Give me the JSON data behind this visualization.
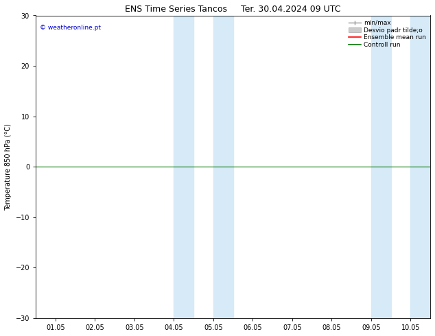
{
  "title": "ENS Time Series Tancos",
  "title2": "Ter. 30.04.2024 09 UTC",
  "ylabel": "Temperature 850 hPa (°C)",
  "ylim": [
    -30,
    30
  ],
  "yticks": [
    -30,
    -20,
    -10,
    0,
    10,
    20,
    30
  ],
  "xtick_labels": [
    "01.05",
    "02.05",
    "03.05",
    "04.05",
    "05.05",
    "06.05",
    "07.05",
    "08.05",
    "09.05",
    "10.05"
  ],
  "xtick_positions": [
    0,
    1,
    2,
    3,
    4,
    5,
    6,
    7,
    8,
    9
  ],
  "xlim": [
    -0.5,
    9.5
  ],
  "background_color": "#ffffff",
  "plot_bg_color": "#ffffff",
  "shade_bands": [
    {
      "x_start": 3.0,
      "x_end": 3.5,
      "color": "#d6eaf8"
    },
    {
      "x_start": 4.0,
      "x_end": 4.5,
      "color": "#d6eaf8"
    },
    {
      "x_start": 8.0,
      "x_end": 8.5,
      "color": "#d6eaf8"
    },
    {
      "x_start": 9.0,
      "x_end": 9.5,
      "color": "#d6eaf8"
    }
  ],
  "hline_y": 0,
  "hline_color": "#007700",
  "copyright_text": "© weatheronline.pt",
  "copyright_color": "#0000cc",
  "legend_minmax_color": "#999999",
  "legend_desvio_color": "#cccccc",
  "legend_ensemble_color": "#ff0000",
  "legend_controll_color": "#007700",
  "title_fontsize": 9,
  "tick_fontsize": 7,
  "ylabel_fontsize": 7,
  "frame_color": "#000000",
  "figwidth": 6.34,
  "figheight": 4.9,
  "dpi": 100
}
